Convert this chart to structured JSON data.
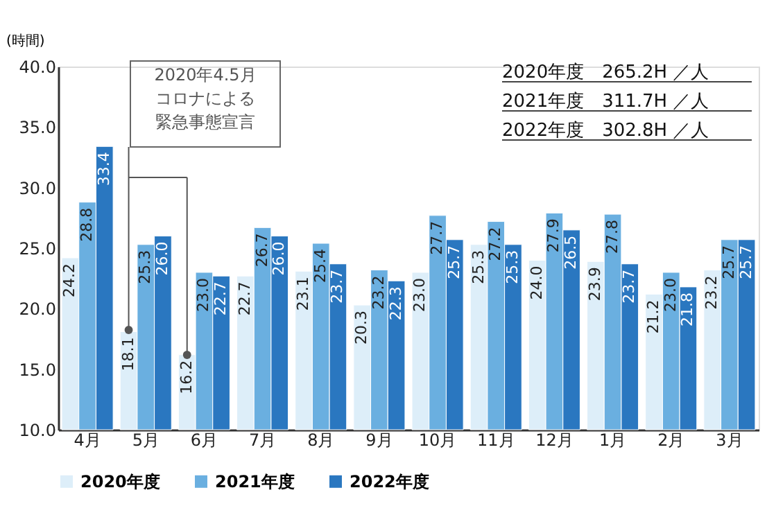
{
  "chart_data": {
    "type": "bar",
    "ylabel": "(時間)",
    "categories": [
      "4月",
      "5月",
      "6月",
      "7月",
      "8月",
      "9月",
      "10月",
      "11月",
      "12月",
      "1月",
      "2月",
      "3月"
    ],
    "series": [
      {
        "name": "2020年度",
        "color": "#ddeef9",
        "values": [
          24.2,
          18.1,
          16.2,
          22.7,
          23.1,
          20.3,
          23.0,
          25.3,
          24.0,
          23.9,
          21.2,
          23.2
        ],
        "value_labels": [
          "24.2",
          "18.1",
          "16.2",
          "22.7",
          "23.1",
          "20.3",
          "23.0",
          "25.3",
          "24.0",
          "23.9",
          "21.2",
          "23.2"
        ]
      },
      {
        "name": "2021年度",
        "color": "#6aafe0",
        "values": [
          28.8,
          25.3,
          23.0,
          26.7,
          25.4,
          23.2,
          27.7,
          27.2,
          27.9,
          27.8,
          23.0,
          25.7
        ],
        "value_labels": [
          "28.8",
          "25.3",
          "23.0",
          "26.7",
          "25.4",
          "23.2",
          "27.7",
          "27.2",
          "27.9",
          "27.8",
          "23.0",
          "25.7"
        ]
      },
      {
        "name": "2022年度",
        "color": "#2a77c0",
        "values": [
          33.4,
          26.0,
          22.7,
          26.0,
          23.7,
          22.3,
          25.7,
          25.3,
          26.5,
          23.7,
          21.8,
          25.7
        ],
        "value_labels": [
          "33.4",
          "26.0",
          "22.7",
          "26.0",
          "23.7",
          "22.3",
          "25.7",
          "25.3",
          "26.5",
          "23.7",
          "21.8",
          "25.7"
        ]
      }
    ],
    "ylim": [
      10,
      40
    ],
    "yticks": [
      {
        "value": 10,
        "label": "10.0"
      },
      {
        "value": 15,
        "label": "15.0"
      },
      {
        "value": 20,
        "label": "20.0"
      },
      {
        "value": 25,
        "label": "25.0"
      },
      {
        "value": 30,
        "label": "30.0"
      },
      {
        "value": 35,
        "label": "35.0"
      },
      {
        "value": 40,
        "label": "40.0"
      }
    ],
    "grid": false,
    "legend": "bottom",
    "annotations": [
      "2020年4.5月コロナによる緊急事態宣言",
      "2020年度　265.2H ／人",
      "2021年度　311.7H ／人",
      "2022年度　302.8H ／人"
    ]
  }
}
